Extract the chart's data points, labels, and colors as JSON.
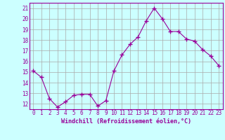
{
  "x": [
    0,
    1,
    2,
    3,
    4,
    5,
    6,
    7,
    8,
    9,
    10,
    11,
    12,
    13,
    14,
    15,
    16,
    17,
    18,
    19,
    20,
    21,
    22,
    23
  ],
  "y": [
    15.1,
    14.5,
    12.5,
    11.7,
    12.2,
    12.8,
    12.9,
    12.9,
    11.8,
    12.3,
    15.1,
    16.6,
    17.6,
    18.3,
    19.8,
    21.0,
    20.0,
    18.8,
    18.8,
    18.1,
    17.9,
    17.1,
    16.5,
    15.6
  ],
  "line_color": "#990099",
  "marker": "+",
  "marker_size": 4,
  "bg_color": "#ccffff",
  "grid_color": "#aaaaaa",
  "xlabel": "Windchill (Refroidissement éolien,°C)",
  "ylabel_ticks": [
    12,
    13,
    14,
    15,
    16,
    17,
    18,
    19,
    20,
    21
  ],
  "xlim": [
    -0.5,
    23.5
  ],
  "ylim": [
    11.5,
    21.5
  ],
  "tick_fontsize": 5.5,
  "xlabel_fontsize": 6.0
}
